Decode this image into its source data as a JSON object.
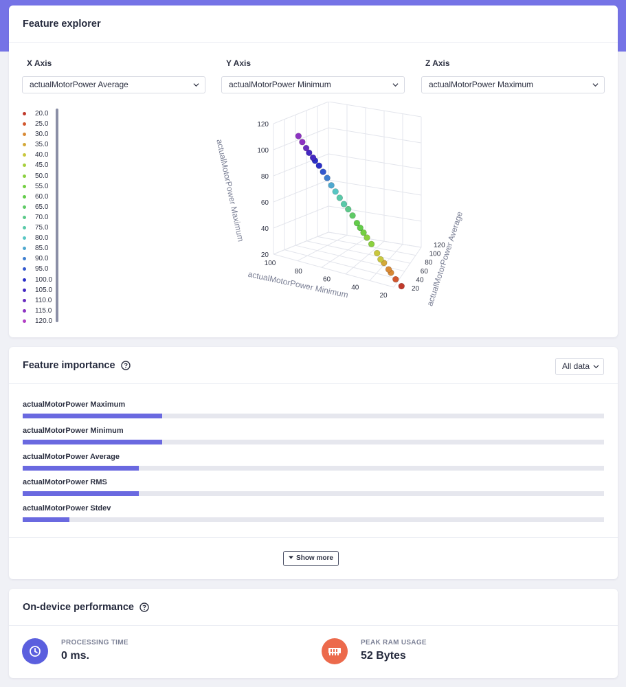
{
  "colors": {
    "accent": "#7573e6",
    "bar_fill": "#6a69e0",
    "bar_track": "#e6e7ee",
    "processing_icon_bg": "#5b5fde",
    "ram_icon_bg": "#ec6a4c"
  },
  "explorer": {
    "title": "Feature explorer",
    "x_axis": {
      "label": "X Axis",
      "selected": "actualMotorPower Average"
    },
    "y_axis": {
      "label": "Y Axis",
      "selected": "actualMotorPower Minimum"
    },
    "z_axis": {
      "label": "Z Axis",
      "selected": "actualMotorPower Maximum"
    },
    "legend": [
      {
        "label": "20.0",
        "color": "#c0392b"
      },
      {
        "label": "25.0",
        "color": "#d2572e"
      },
      {
        "label": "30.0",
        "color": "#d98a35"
      },
      {
        "label": "35.0",
        "color": "#d4a93a"
      },
      {
        "label": "40.0",
        "color": "#c9c73e"
      },
      {
        "label": "45.0",
        "color": "#a8cf3d"
      },
      {
        "label": "50.0",
        "color": "#8bd03f"
      },
      {
        "label": "55.0",
        "color": "#74cf42"
      },
      {
        "label": "60.0",
        "color": "#63cc4a"
      },
      {
        "label": "65.0",
        "color": "#5fca66"
      },
      {
        "label": "70.0",
        "color": "#5cc98a"
      },
      {
        "label": "75.0",
        "color": "#5ac9a9"
      },
      {
        "label": "80.0",
        "color": "#58c6c4"
      },
      {
        "label": "85.0",
        "color": "#4fa8cf"
      },
      {
        "label": "90.0",
        "color": "#3f7fd0"
      },
      {
        "label": "95.0",
        "color": "#3358cf"
      },
      {
        "label": "100.0",
        "color": "#2b2fc8"
      },
      {
        "label": "105.0",
        "color": "#4428c2"
      },
      {
        "label": "110.0",
        "color": "#6a2dbf"
      },
      {
        "label": "115.0",
        "color": "#8d33c2"
      },
      {
        "label": "120.0",
        "color": "#b23fc4"
      }
    ]
  },
  "chart_data": {
    "type": "scatter",
    "title": "",
    "xlabel": "actualMotorPower Average",
    "ylabel": "actualMotorPower Minimum",
    "zlabel": "actualMotorPower Maximum",
    "x_ticks": [
      "20",
      "40",
      "60",
      "80",
      "100",
      "120"
    ],
    "y_ticks": [
      "20",
      "40",
      "60",
      "80",
      "100"
    ],
    "z_ticks": [
      "20",
      "40",
      "60",
      "80",
      "100",
      "120"
    ],
    "xlim": [
      15,
      125
    ],
    "ylim": [
      15,
      125
    ],
    "zlim": [
      15,
      125
    ],
    "points": [
      {
        "x": 20,
        "y": 20,
        "z": 22
      },
      {
        "x": 24,
        "y": 25,
        "z": 26
      },
      {
        "x": 28,
        "y": 29,
        "z": 30
      },
      {
        "x": 30,
        "y": 31,
        "z": 32
      },
      {
        "x": 34,
        "y": 35,
        "z": 36
      },
      {
        "x": 36,
        "y": 38,
        "z": 38
      },
      {
        "x": 40,
        "y": 41,
        "z": 42
      },
      {
        "x": 44,
        "y": 46,
        "z": 48
      },
      {
        "x": 48,
        "y": 50,
        "z": 52
      },
      {
        "x": 52,
        "y": 53,
        "z": 55
      },
      {
        "x": 55,
        "y": 56,
        "z": 58
      },
      {
        "x": 58,
        "y": 59,
        "z": 61
      },
      {
        "x": 62,
        "y": 63,
        "z": 66
      },
      {
        "x": 66,
        "y": 67,
        "z": 70
      },
      {
        "x": 70,
        "y": 71,
        "z": 73
      },
      {
        "x": 74,
        "y": 75,
        "z": 77
      },
      {
        "x": 78,
        "y": 79,
        "z": 81
      },
      {
        "x": 82,
        "y": 83,
        "z": 85
      },
      {
        "x": 86,
        "y": 87,
        "z": 90
      },
      {
        "x": 90,
        "y": 91,
        "z": 94
      },
      {
        "x": 94,
        "y": 95,
        "z": 98
      },
      {
        "x": 98,
        "y": 99,
        "z": 101
      },
      {
        "x": 100,
        "y": 101,
        "z": 103
      },
      {
        "x": 104,
        "y": 105,
        "z": 106
      },
      {
        "x": 108,
        "y": 108,
        "z": 109
      },
      {
        "x": 112,
        "y": 112,
        "z": 113
      },
      {
        "x": 116,
        "y": 116,
        "z": 117
      }
    ]
  },
  "importance": {
    "title": "Feature importance",
    "dataset_selected": "All data",
    "features": [
      {
        "label": "actualMotorPower Maximum",
        "value": 0.24
      },
      {
        "label": "actualMotorPower Minimum",
        "value": 0.24
      },
      {
        "label": "actualMotorPower Average",
        "value": 0.2
      },
      {
        "label": "actualMotorPower RMS",
        "value": 0.2
      },
      {
        "label": "actualMotorPower Stdev",
        "value": 0.08
      }
    ],
    "show_more_label": "Show more"
  },
  "performance": {
    "title": "On-device performance",
    "processing_label": "PROCESSING TIME",
    "processing_value": "0 ms.",
    "ram_label": "PEAK RAM USAGE",
    "ram_value": "52 Bytes"
  }
}
